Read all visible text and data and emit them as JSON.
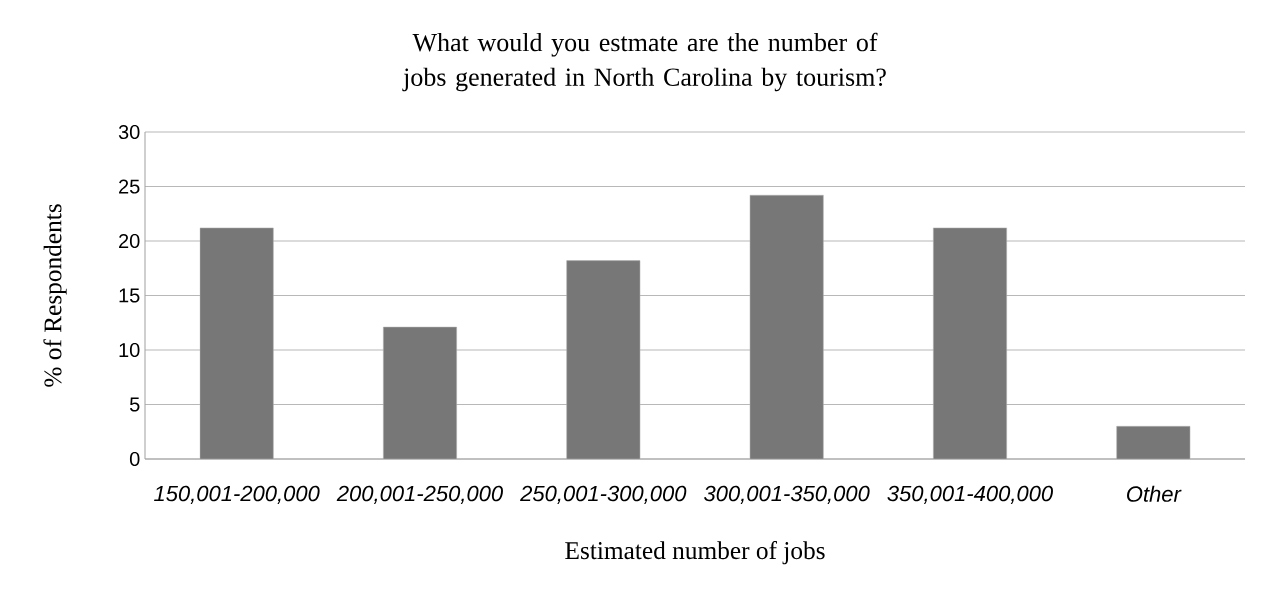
{
  "chart_data": {
    "type": "bar",
    "title": "What would you estmate are the number of jobs generated in North Carolina by tourism?",
    "xlabel": "Estimated number of jobs",
    "ylabel": "% of Respondents",
    "categories": [
      "150,001-200,000",
      "200,001-250,000",
      "250,001-300,000",
      "300,001-350,000",
      "350,001-400,000",
      "Other"
    ],
    "values": [
      21.2,
      12.1,
      18.2,
      24.2,
      21.2,
      3.0
    ],
    "color": "#777777",
    "ylim": [
      0,
      30
    ],
    "yticks": [
      0,
      5,
      10,
      15,
      20,
      25,
      30
    ],
    "grid": "y"
  }
}
